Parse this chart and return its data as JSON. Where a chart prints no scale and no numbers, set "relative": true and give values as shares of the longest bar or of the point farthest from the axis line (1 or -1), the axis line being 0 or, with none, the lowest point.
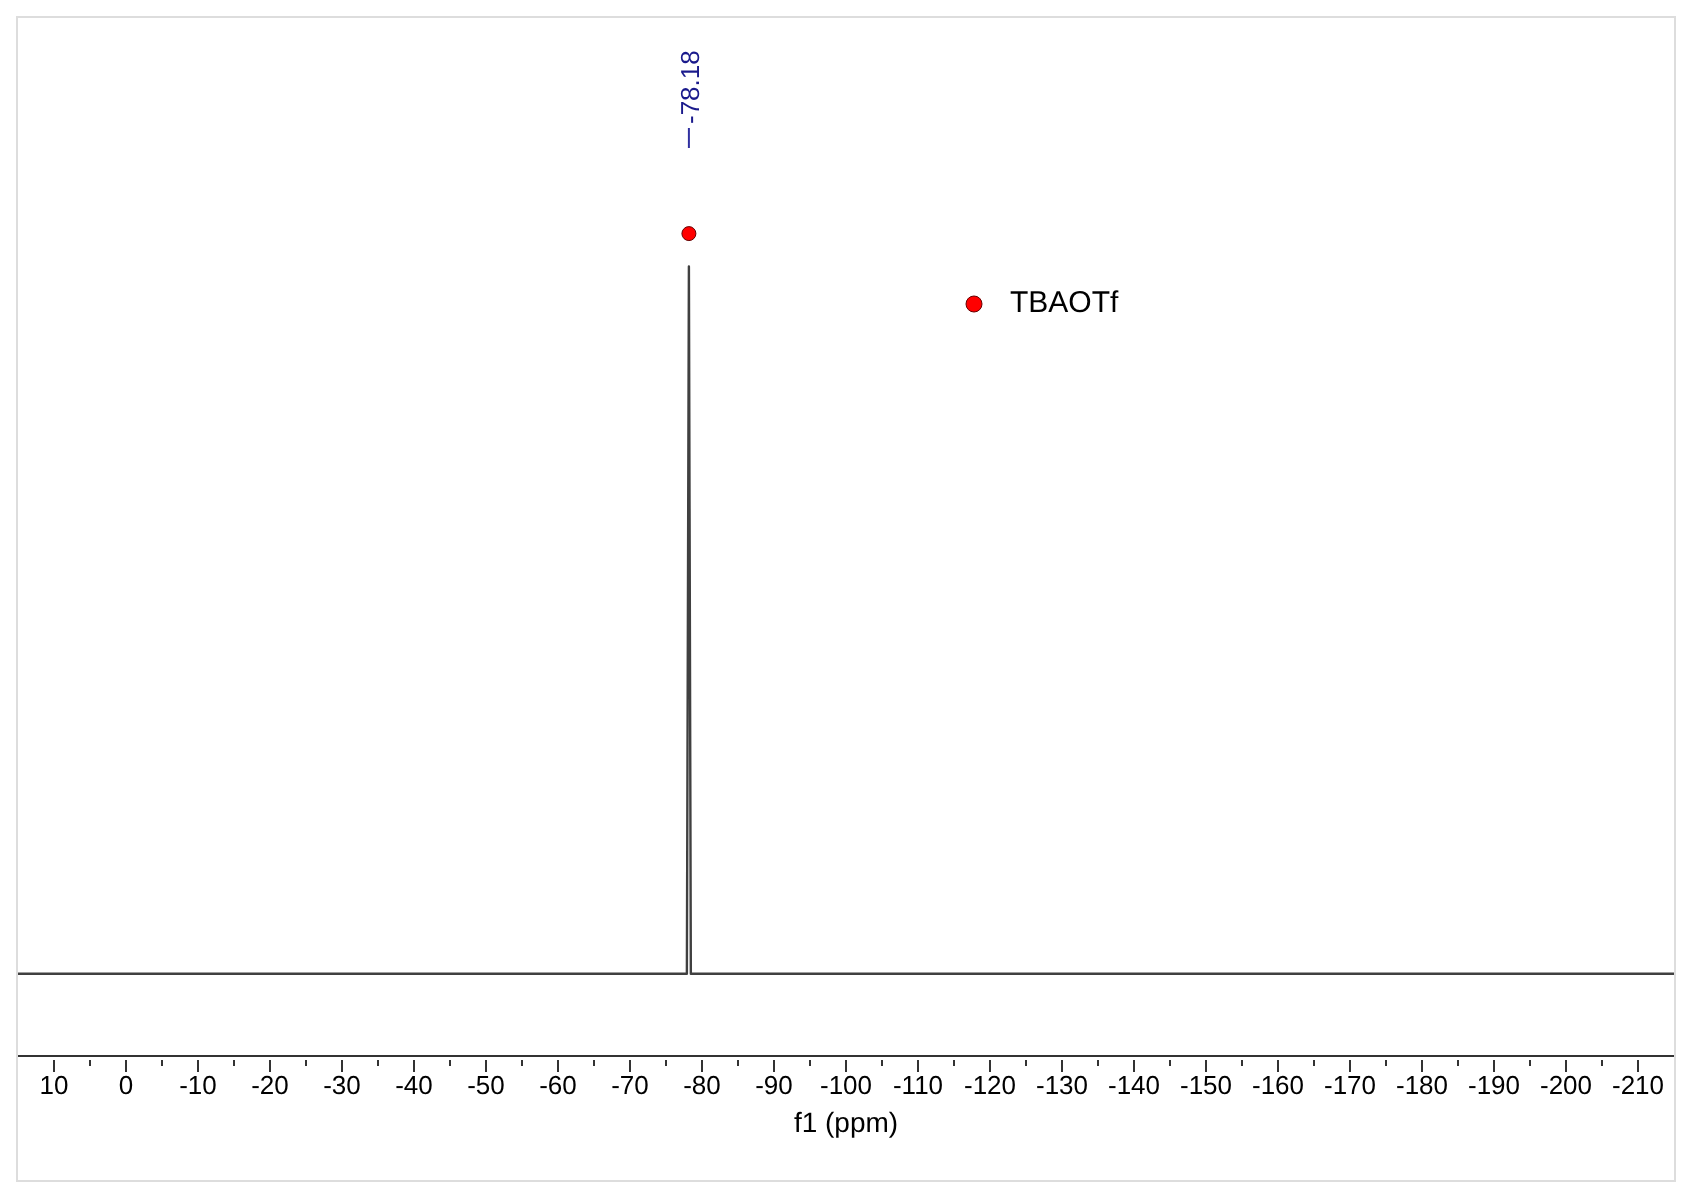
{
  "chart_data": {
    "type": "line",
    "relative": true,
    "xlabel": "f1 (ppm)",
    "xlim": [
      15,
      -215
    ],
    "xticks": [
      10,
      {
        "value": 5,
        "label": null
      },
      0,
      {
        "value": -5,
        "label": null
      },
      -10,
      {
        "value": -15,
        "label": null
      },
      -20,
      {
        "value": -25,
        "label": null
      },
      -30,
      {
        "value": -35,
        "label": null
      },
      -40,
      {
        "value": -45,
        "label": null
      },
      -50,
      {
        "value": -55,
        "label": null
      },
      -60,
      {
        "value": -65,
        "label": null
      },
      -70,
      {
        "value": -75,
        "label": null
      },
      -80,
      {
        "value": -85,
        "label": null
      },
      -90,
      {
        "value": -95,
        "label": null
      },
      -100,
      {
        "value": -105,
        "label": null
      },
      -110,
      {
        "value": -115,
        "label": null
      },
      -120,
      {
        "value": -125,
        "label": null
      },
      -130,
      {
        "value": -135,
        "label": null
      },
      -140,
      {
        "value": -145,
        "label": null
      },
      -150,
      {
        "value": -155,
        "label": null
      },
      -160,
      {
        "value": -165,
        "label": null
      },
      -170,
      {
        "value": -175,
        "label": null
      },
      -180,
      {
        "value": -185,
        "label": null
      },
      -190,
      {
        "value": -195,
        "label": null
      },
      -200,
      {
        "value": -205,
        "label": null
      },
      -210
    ],
    "tick_labels": "x",
    "grid": false,
    "legend": "top right",
    "series": [
      {
        "color": "#404040",
        "x": [
          15,
          -77.9,
          -78.18,
          -78.45,
          -215
        ],
        "values": [
          0.1,
          0.1,
          0.96,
          0.1,
          0.1
        ]
      },
      {
        "type": "scatter",
        "name": "TBAOTf",
        "color": "#ff0000",
        "marker": "circle",
        "x": [
          -78.18
        ],
        "values": [
          1
        ]
      }
    ],
    "annotations": [
      {
        "text": "-78.18",
        "x": -78.18
      }
    ]
  }
}
